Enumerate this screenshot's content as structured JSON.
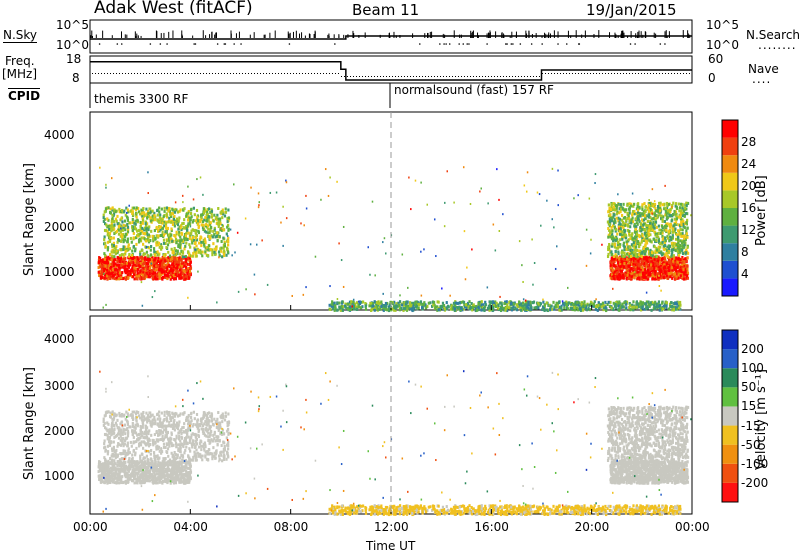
{
  "header": {
    "title": "Adak West (fitACF)",
    "beam": "Beam 11",
    "date": "19/Jan/2015"
  },
  "top_panel": {
    "left_label": "N.Sky",
    "right_label": "N.Search",
    "left_ticks": [
      "10^5",
      "10^0"
    ],
    "right_ticks": [
      "10^5",
      "10^0"
    ]
  },
  "freq_panel": {
    "left_label_line1": "Freq.",
    "left_label_line2": "[MHz]",
    "right_label": "Nave",
    "left_ticks": [
      "18",
      "8"
    ],
    "right_ticks": [
      "60",
      "0"
    ]
  },
  "cpid": {
    "label": "CPID",
    "seg1": "themis 3300 RF",
    "seg2": "normalsound (fast) 157 RF"
  },
  "power_panel": {
    "ylabel": "Slant Range [km]",
    "yticks": [
      "4000",
      "3000",
      "2000",
      "1000"
    ],
    "colorbar_label": "Power [dB]",
    "colorbar_ticks": [
      "28",
      "24",
      "20",
      "16",
      "12",
      "8",
      "4"
    ],
    "colors": [
      "#1a1aff",
      "#1f4fd0",
      "#2f7fa0",
      "#3e9a70",
      "#5fb040",
      "#a8c828",
      "#f0c818",
      "#f08a10",
      "#f04010",
      "#ff0000"
    ]
  },
  "velocity_panel": {
    "ylabel": "Slant Range [km]",
    "yticks": [
      "4000",
      "3000",
      "2000",
      "1000"
    ],
    "colorbar_label": "Velocity [m s⁻¹]",
    "colorbar_ticks": [
      "200",
      "100",
      "50",
      "15",
      "-15",
      "-50",
      "-100",
      "-200"
    ],
    "colors": [
      "#1030c0",
      "#2860c8",
      "#2a8a5a",
      "#60c040",
      "#c8c8c0",
      "#f0c020",
      "#f09010",
      "#f05010",
      "#ff1010"
    ]
  },
  "xaxis": {
    "label": "Time UT",
    "ticks": [
      "00:00",
      "04:00",
      "08:00",
      "12:00",
      "16:00",
      "20:00",
      "00:00"
    ]
  },
  "chart_data": {
    "type": "heatmap",
    "title": "Adak West (fitACF)",
    "subtitle": "Beam 11 19/Jan/2015",
    "xlabel": "Time UT",
    "ylabel": "Slant Range [km]",
    "xlim": [
      0,
      24
    ],
    "ylim": [
      180,
      4600
    ],
    "power_clim": [
      2,
      32
    ],
    "velocity_clim": [
      -250,
      250
    ],
    "freq_segments": [
      {
        "start": 0,
        "end": 10,
        "freq_mhz": 16.5
      },
      {
        "start": 10,
        "end": 10.2,
        "freq_mhz": 13.5
      },
      {
        "start": 10.2,
        "end": 18,
        "freq_mhz": 9.2
      },
      {
        "start": 18,
        "end": 24,
        "freq_mhz": 13.2
      }
    ],
    "cpid_segments": [
      {
        "start": 0,
        "end": 12,
        "name": "themis 3300 RF"
      },
      {
        "start": 12,
        "end": 24,
        "name": "normalsound (fast) 157 RF"
      }
    ],
    "scatter_regions": [
      {
        "t0": 0.3,
        "t1": 4.0,
        "r0": 900,
        "r1": 1400,
        "power": 29,
        "velocity": 0
      },
      {
        "t0": 0.5,
        "t1": 5.5,
        "r0": 1400,
        "r1": 2500,
        "power": 18,
        "velocity": 0
      },
      {
        "t0": 20.7,
        "t1": 23.8,
        "r0": 900,
        "r1": 1400,
        "power": 29,
        "velocity": 0
      },
      {
        "t0": 20.6,
        "t1": 23.8,
        "r0": 1400,
        "r1": 2600,
        "power": 17,
        "velocity": 0
      },
      {
        "t0": 9.5,
        "t1": 23.5,
        "r0": 200,
        "r1": 400,
        "power": 14,
        "velocity": -40
      }
    ]
  }
}
